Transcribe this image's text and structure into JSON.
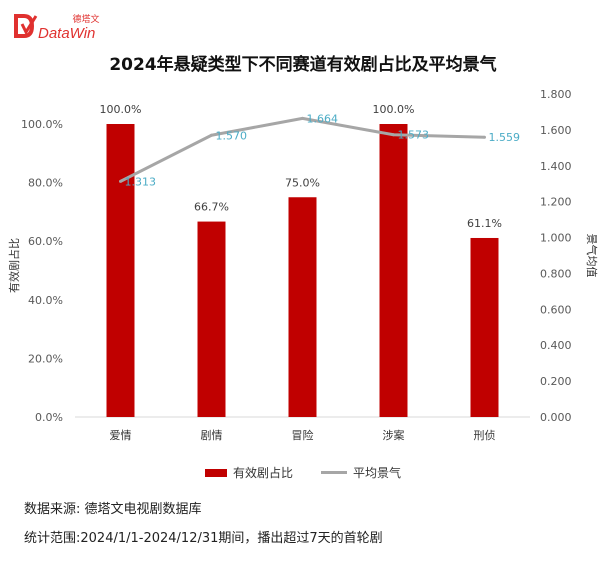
{
  "brand": {
    "chinese": "德塔文",
    "english": "DataWin",
    "color": "#e0312f"
  },
  "footnotes": {
    "source": "数据来源: 德塔文电视剧数据库",
    "range": "统计范围:2024/1/1-2024/12/31期间，播出超过7天的首轮剧"
  },
  "chart_data": {
    "type": "bar",
    "title": "2024年悬疑类型下不同赛道有效剧占比及平均景气",
    "categories": [
      "爱情",
      "剧情",
      "冒险",
      "涉案",
      "刑侦"
    ],
    "ylabel": "有效剧占比",
    "ylabel_right": "景气均值",
    "ylim": [
      0,
      100
    ],
    "ylim_right": [
      0,
      1.8
    ],
    "y_ticks": [
      "0.0%",
      "20.0%",
      "40.0%",
      "60.0%",
      "80.0%",
      "100.0%"
    ],
    "y_right_ticks": [
      "0.000",
      "0.200",
      "0.400",
      "0.600",
      "0.800",
      "1.000",
      "1.200",
      "1.400",
      "1.600",
      "1.800"
    ],
    "series": [
      {
        "name": "有效剧占比",
        "kind": "bar",
        "color": "#c00000",
        "values": [
          100.0,
          66.7,
          75.0,
          100.0,
          61.1
        ],
        "labels": [
          "100.0%",
          "66.7%",
          "75.0%",
          "100.0%",
          "61.1%"
        ]
      },
      {
        "name": "平均景气",
        "kind": "line",
        "color": "#a6a6a6",
        "label_color": "#4bacc6",
        "values": [
          1.313,
          1.57,
          1.664,
          1.573,
          1.559
        ],
        "labels": [
          "1.313",
          "1.570",
          "1.664",
          "1.573",
          "1.559"
        ]
      }
    ],
    "grid": false,
    "legend_position": "bottom"
  }
}
